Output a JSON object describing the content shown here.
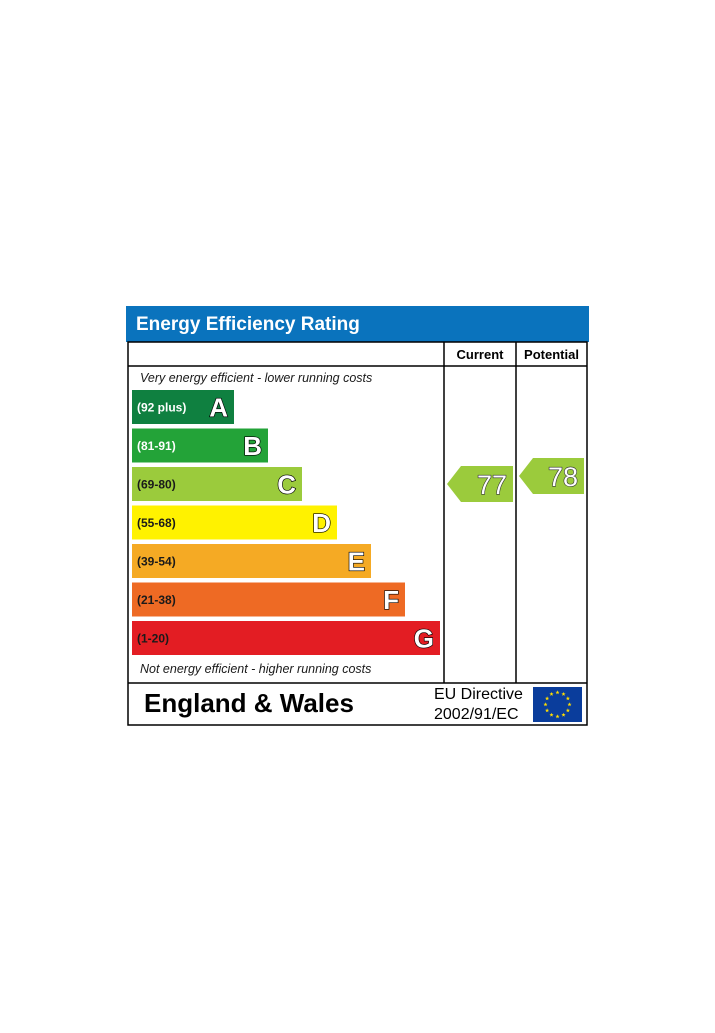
{
  "chart_data": {
    "type": "bar",
    "title": "Energy Efficiency Rating",
    "column_headers": {
      "current": "Current",
      "potential": "Potential"
    },
    "top_note": "Very energy efficient - lower running costs",
    "bottom_note": "Not energy efficient - higher running costs",
    "bands": [
      {
        "letter": "A",
        "range": "(92 plus)",
        "color": "#008054",
        "dark_text": false
      },
      {
        "letter": "B",
        "range": "(81-91)",
        "color": "#19b459",
        "dark_text": false
      },
      {
        "letter": "C",
        "range": "(69-80)",
        "color": "#8dce46",
        "dark_text": true
      },
      {
        "letter": "D",
        "range": "(55-68)",
        "color": "#ffd500",
        "dark_text": true
      },
      {
        "letter": "E",
        "range": "(39-54)",
        "color": "#fcaa65",
        "dark_text": true
      },
      {
        "letter": "F",
        "range": "(21-38)",
        "color": "#ef8023",
        "dark_text": true
      },
      {
        "letter": "G",
        "range": "(1-20)",
        "color": "#e9153b",
        "dark_text": true
      }
    ],
    "current": {
      "value": 77,
      "band": "C",
      "color": "#8dce46"
    },
    "potential": {
      "value": 78,
      "band": "C",
      "color": "#8dce46"
    },
    "footer": {
      "region": "England & Wales",
      "directive_line1": "EU Directive",
      "directive_line2": "2002/91/EC"
    },
    "colors": {
      "header_bg": "#0a73bd",
      "border": "#000000",
      "band_colors_actual": [
        "#0f8040",
        "#23a338",
        "#9bcb3c",
        "#fff200",
        "#f5aa24",
        "#ee6a24",
        "#e31d23"
      ],
      "flag_blue": "#0a3d9c",
      "flag_star": "#ffdd00"
    }
  }
}
